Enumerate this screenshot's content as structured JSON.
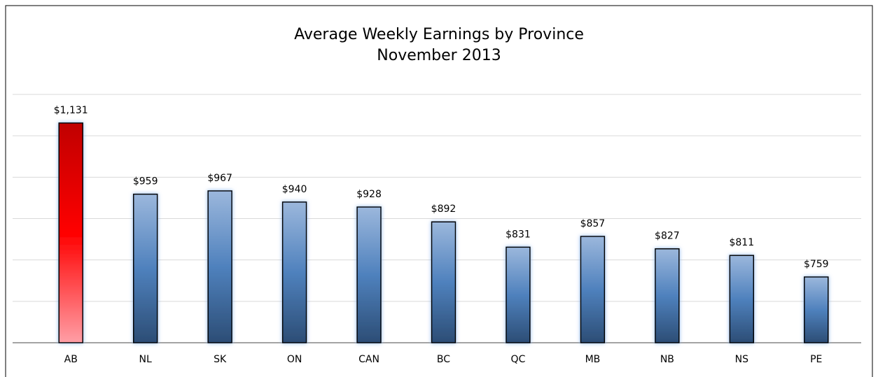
{
  "chart_data": {
    "type": "bar",
    "title": "Average Weekly Earnings by Province",
    "subtitle": "November 2013",
    "categories": [
      "AB",
      "NL",
      "SK",
      "ON",
      "CAN",
      "BC",
      "QC",
      "MB",
      "NB",
      "NS",
      "PE"
    ],
    "values": [
      1131,
      959,
      967,
      940,
      928,
      892,
      831,
      857,
      827,
      811,
      759
    ],
    "value_labels": [
      "$1,131",
      "$959",
      "$967",
      "$940",
      "$928",
      "$892",
      "$831",
      "$857",
      "$827",
      "$811",
      "$759"
    ],
    "colors": [
      "#ff0000",
      "#4f81bd",
      "#4f81bd",
      "#4f81bd",
      "#4f81bd",
      "#4f81bd",
      "#4f81bd",
      "#4f81bd",
      "#4f81bd",
      "#4f81bd",
      "#4f81bd"
    ],
    "ylim": [
      600,
      1200
    ],
    "yticks": [
      600,
      700,
      800,
      900,
      1000,
      1100,
      1200
    ],
    "grid": true
  }
}
